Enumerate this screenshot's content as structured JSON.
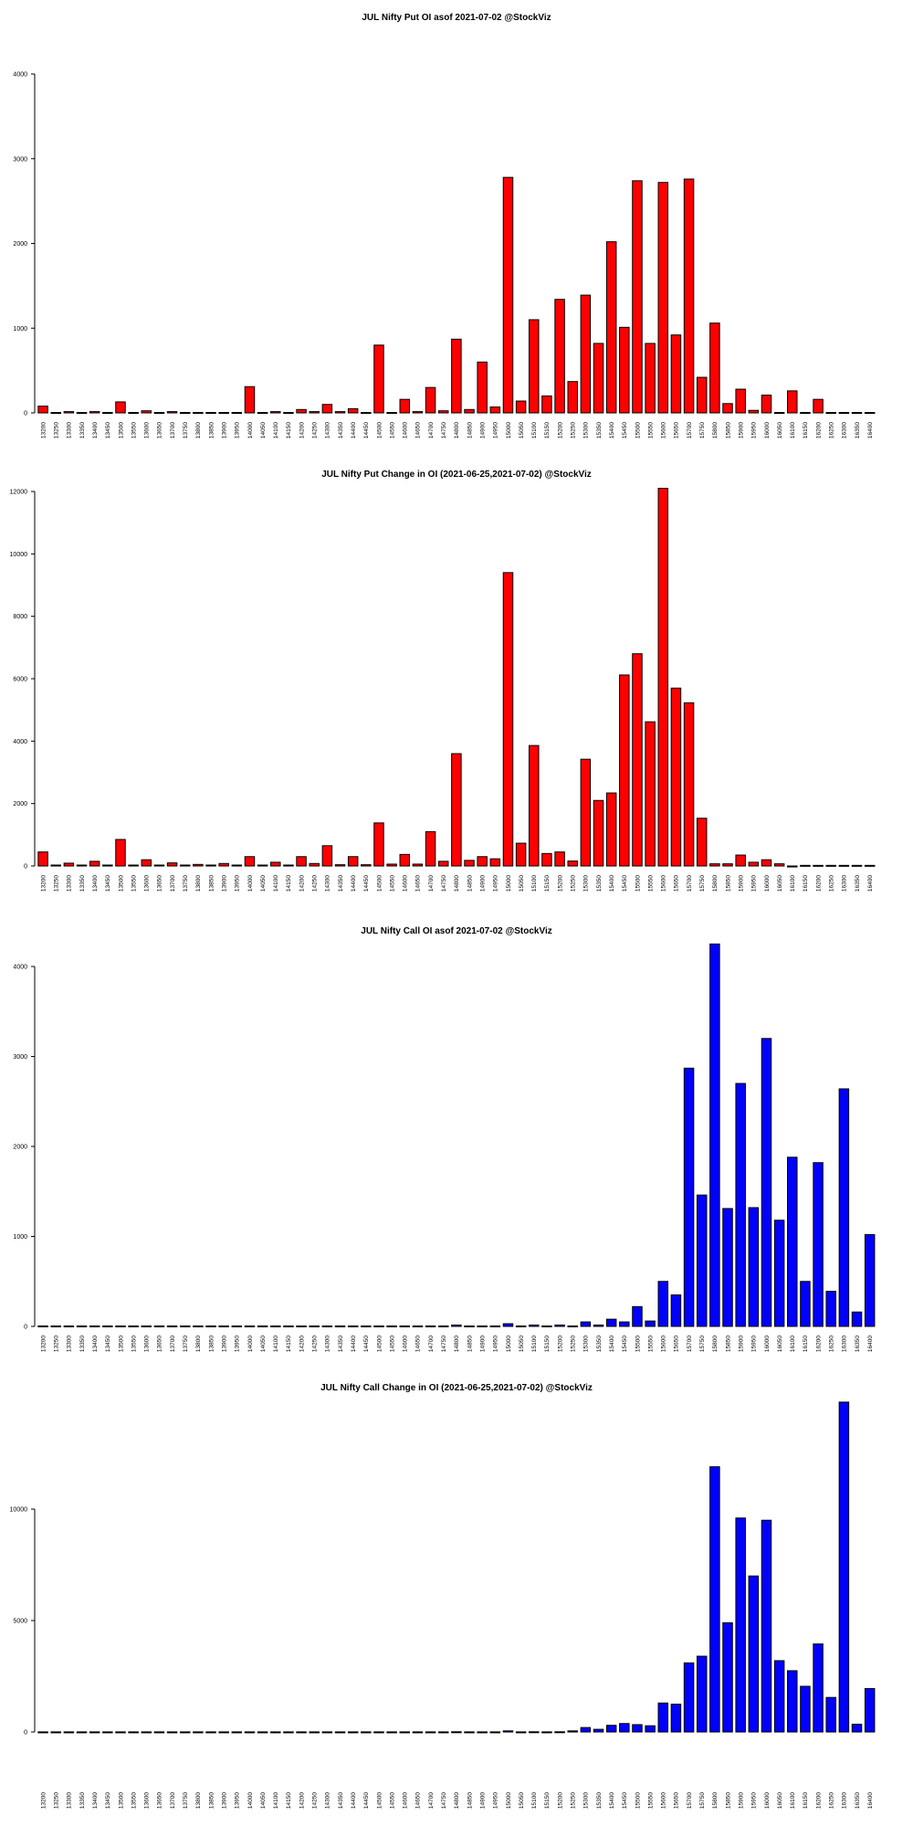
{
  "chart_data": [
    {
      "type": "bar",
      "title": "JUL Nifty Put OI asof 2021-07-02 @StockViz",
      "xlabel": "",
      "ylabel": "",
      "color": "#ff0000",
      "ylim": [
        0,
        4000
      ],
      "yticks": [
        0,
        1000,
        2000,
        3000,
        4000
      ],
      "categories": [
        "13200",
        "13250",
        "13300",
        "13350",
        "13400",
        "13450",
        "13500",
        "13550",
        "13600",
        "13650",
        "13700",
        "13750",
        "13800",
        "13850",
        "13900",
        "13950",
        "14000",
        "14050",
        "14100",
        "14150",
        "14200",
        "14250",
        "14300",
        "14350",
        "14400",
        "14450",
        "14500",
        "14550",
        "14600",
        "14650",
        "14700",
        "14750",
        "14800",
        "14850",
        "14900",
        "14950",
        "15000",
        "15050",
        "15100",
        "15150",
        "15200",
        "15250",
        "15300",
        "15350",
        "15400",
        "15450",
        "15500",
        "15550",
        "15600",
        "15650",
        "15700",
        "15750",
        "15800",
        "15850",
        "15900",
        "15950",
        "16000",
        "16050",
        "16100",
        "16150",
        "16200",
        "16250",
        "16300",
        "16350",
        "16400"
      ],
      "values": [
        80,
        5,
        15,
        5,
        15,
        5,
        130,
        5,
        25,
        5,
        15,
        5,
        5,
        5,
        5,
        5,
        310,
        5,
        15,
        5,
        40,
        15,
        100,
        15,
        50,
        5,
        800,
        5,
        160,
        15,
        300,
        25,
        870,
        40,
        600,
        70,
        2780,
        140,
        1100,
        200,
        1340,
        370,
        1390,
        820,
        2020,
        1010,
        2740,
        820,
        2720,
        920,
        2760,
        420,
        1060,
        110,
        280,
        30,
        210,
        5,
        260,
        5,
        160,
        5,
        5,
        5,
        5
      ]
    },
    {
      "type": "bar",
      "title": "JUL Nifty Put Change in OI (2021-06-25,2021-07-02) @StockViz",
      "xlabel": "",
      "ylabel": "",
      "color": "#ff0000",
      "ylim": [
        0,
        12000
      ],
      "yticks": [
        0,
        2000,
        4000,
        6000,
        8000,
        10000,
        12000
      ],
      "categories": [
        "13200",
        "13250",
        "13300",
        "13350",
        "13400",
        "13450",
        "13500",
        "13550",
        "13600",
        "13650",
        "13700",
        "13750",
        "13800",
        "13850",
        "13900",
        "13950",
        "14000",
        "14050",
        "14100",
        "14150",
        "14200",
        "14250",
        "14300",
        "14350",
        "14400",
        "14450",
        "14500",
        "14550",
        "14600",
        "14650",
        "14700",
        "14750",
        "14800",
        "14850",
        "14900",
        "14950",
        "15000",
        "15050",
        "15100",
        "15150",
        "15200",
        "15250",
        "15300",
        "15350",
        "15400",
        "15450",
        "15500",
        "15550",
        "15600",
        "15650",
        "15700",
        "15750",
        "15800",
        "15850",
        "15900",
        "15950",
        "16000",
        "16050",
        "16100",
        "16150",
        "16200",
        "16250",
        "16300",
        "16350",
        "16400"
      ],
      "values": [
        450,
        30,
        90,
        30,
        150,
        30,
        850,
        30,
        200,
        30,
        100,
        30,
        50,
        30,
        80,
        30,
        300,
        30,
        120,
        30,
        300,
        80,
        650,
        40,
        300,
        40,
        1380,
        60,
        370,
        60,
        1100,
        150,
        3600,
        180,
        300,
        230,
        9400,
        730,
        3860,
        400,
        450,
        160,
        3420,
        2100,
        2340,
        6120,
        6800,
        4620,
        12100,
        5700,
        5230,
        1530,
        70,
        70,
        350,
        120,
        200,
        70,
        -30,
        20,
        20,
        20,
        20,
        20,
        20
      ]
    },
    {
      "type": "bar",
      "title": "JUL Nifty Call OI asof 2021-07-02 @StockViz",
      "xlabel": "",
      "ylabel": "",
      "color": "#0000ff",
      "ylim": [
        0,
        4000
      ],
      "yticks": [
        0,
        1000,
        2000,
        3000,
        4000
      ],
      "categories": [
        "13200",
        "13250",
        "13300",
        "13350",
        "13400",
        "13450",
        "13500",
        "13550",
        "13600",
        "13650",
        "13700",
        "13750",
        "13800",
        "13850",
        "13900",
        "13950",
        "14000",
        "14050",
        "14100",
        "14150",
        "14200",
        "14250",
        "14300",
        "14350",
        "14400",
        "14450",
        "14500",
        "14550",
        "14600",
        "14650",
        "14700",
        "14750",
        "14800",
        "14850",
        "14900",
        "14950",
        "15000",
        "15050",
        "15100",
        "15150",
        "15200",
        "15250",
        "15300",
        "15350",
        "15400",
        "15450",
        "15500",
        "15550",
        "15600",
        "15650",
        "15700",
        "15750",
        "15800",
        "15850",
        "15900",
        "15950",
        "16000",
        "16050",
        "16100",
        "16150",
        "16200",
        "16250",
        "16300",
        "16350",
        "16400"
      ],
      "values": [
        5,
        5,
        5,
        5,
        5,
        5,
        5,
        5,
        5,
        5,
        5,
        5,
        5,
        5,
        5,
        5,
        5,
        5,
        5,
        5,
        5,
        5,
        5,
        5,
        5,
        5,
        5,
        5,
        5,
        5,
        5,
        5,
        15,
        5,
        5,
        5,
        30,
        5,
        15,
        5,
        15,
        5,
        50,
        15,
        80,
        50,
        220,
        60,
        500,
        350,
        2870,
        1460,
        4250,
        1310,
        2700,
        1320,
        3200,
        1180,
        1880,
        500,
        1820,
        390,
        2640,
        160,
        1020
      ]
    },
    {
      "type": "bar",
      "title": "JUL Nifty Call Change in OI (2021-06-25,2021-07-02) @StockViz",
      "xlabel": "",
      "ylabel": "",
      "color": "#0000ff",
      "ylim": [
        0,
        15000
      ],
      "yticks": [
        0,
        5000,
        10000
      ],
      "categories": [
        "13200",
        "13250",
        "13300",
        "13350",
        "13400",
        "13450",
        "13500",
        "13550",
        "13600",
        "13650",
        "13700",
        "13750",
        "13800",
        "13850",
        "13900",
        "13950",
        "14000",
        "14050",
        "14100",
        "14150",
        "14200",
        "14250",
        "14300",
        "14350",
        "14400",
        "14450",
        "14500",
        "14550",
        "14600",
        "14650",
        "14700",
        "14750",
        "14800",
        "14850",
        "14900",
        "14950",
        "15000",
        "15050",
        "15100",
        "15150",
        "15200",
        "15250",
        "15300",
        "15350",
        "15400",
        "15450",
        "15500",
        "15550",
        "15600",
        "15650",
        "15700",
        "15750",
        "15800",
        "15850",
        "15900",
        "15950",
        "16000",
        "16050",
        "16100",
        "16150",
        "16200",
        "16250",
        "16300",
        "16350",
        "16400"
      ],
      "values": [
        5,
        5,
        5,
        5,
        5,
        5,
        5,
        5,
        5,
        5,
        5,
        5,
        5,
        5,
        5,
        5,
        5,
        5,
        5,
        5,
        5,
        5,
        5,
        5,
        5,
        5,
        5,
        5,
        5,
        5,
        5,
        5,
        10,
        5,
        5,
        5,
        50,
        5,
        10,
        5,
        10,
        50,
        200,
        120,
        300,
        380,
        330,
        280,
        1300,
        1250,
        3100,
        3400,
        11900,
        4900,
        9600,
        7000,
        9500,
        3200,
        2750,
        2050,
        3950,
        1550,
        14800,
        350,
        1950
      ]
    }
  ]
}
